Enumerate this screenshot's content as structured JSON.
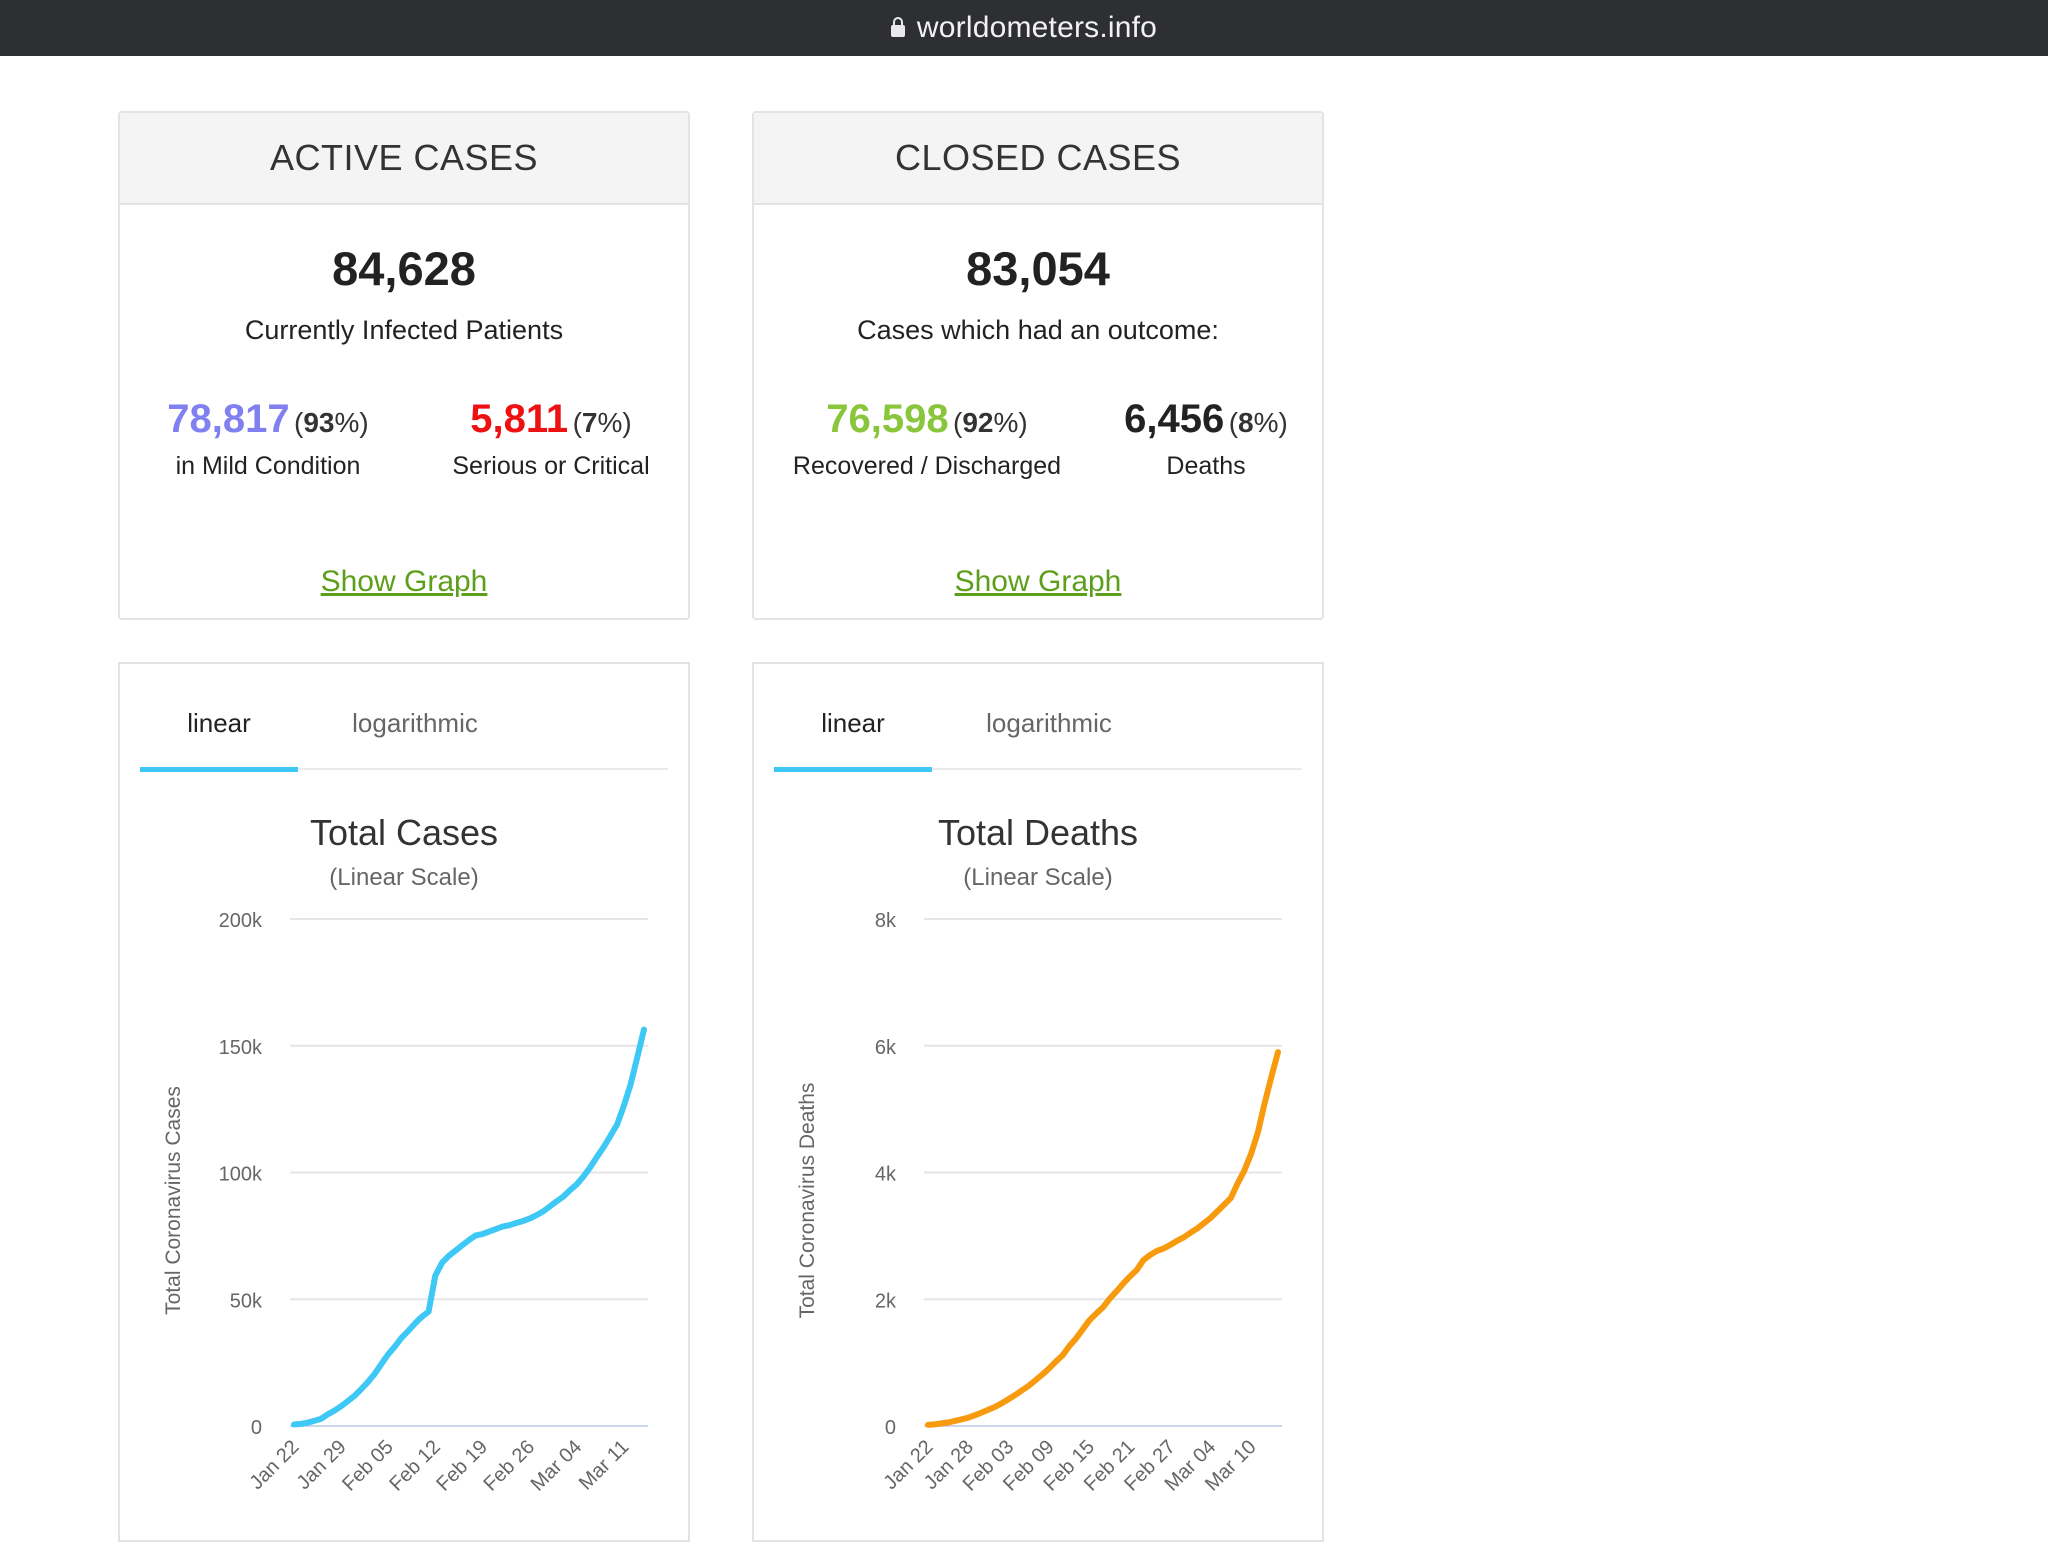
{
  "browser": {
    "url": "worldometers.info"
  },
  "active_cases": {
    "header": "ACTIVE CASES",
    "total": "84,628",
    "total_label": "Currently Infected Patients",
    "mild": {
      "value": "78,817",
      "pct": "93",
      "label": "in Mild Condition",
      "color": "#8080f0"
    },
    "serious": {
      "value": "5,811",
      "pct": "7",
      "label": "Serious or Critical",
      "color": "#ee1111"
    },
    "link": "Show Graph"
  },
  "closed_cases": {
    "header": "CLOSED CASES",
    "total": "83,054",
    "total_label": "Cases which had an outcome:",
    "recovered": {
      "value": "76,598",
      "pct": "92",
      "label": "Recovered / Discharged",
      "color": "#8ac63b"
    },
    "deaths": {
      "value": "6,456",
      "pct": "8",
      "label": "Deaths",
      "color": "#222222"
    },
    "link": "Show Graph"
  },
  "chart_data": [
    {
      "type": "line",
      "tabs": [
        "linear",
        "logarithmic"
      ],
      "active_tab": "linear",
      "title": "Total Cases",
      "subtitle": "(Linear Scale)",
      "ylabel": "Total Coronavirus Cases",
      "ylim": [
        0,
        200000
      ],
      "yticks": [
        0,
        50000,
        100000,
        150000,
        200000
      ],
      "ytick_labels": [
        "0",
        "50k",
        "100k",
        "150k",
        "200k"
      ],
      "xtick_labels": [
        "Jan 22",
        "Jan 29",
        "Feb 05",
        "Feb 12",
        "Feb 19",
        "Feb 26",
        "Mar 04",
        "Mar 11"
      ],
      "color": "#3ec8f5",
      "x": [
        "Jan 22",
        "Jan 23",
        "Jan 24",
        "Jan 25",
        "Jan 26",
        "Jan 27",
        "Jan 28",
        "Jan 29",
        "Jan 30",
        "Jan 31",
        "Feb 01",
        "Feb 02",
        "Feb 03",
        "Feb 04",
        "Feb 05",
        "Feb 06",
        "Feb 07",
        "Feb 08",
        "Feb 09",
        "Feb 10",
        "Feb 11",
        "Feb 12",
        "Feb 13",
        "Feb 14",
        "Feb 15",
        "Feb 16",
        "Feb 17",
        "Feb 18",
        "Feb 19",
        "Feb 20",
        "Feb 21",
        "Feb 22",
        "Feb 23",
        "Feb 24",
        "Feb 25",
        "Feb 26",
        "Feb 27",
        "Feb 28",
        "Feb 29",
        "Mar 01",
        "Mar 02",
        "Mar 03",
        "Mar 04",
        "Mar 05",
        "Mar 06",
        "Mar 07",
        "Mar 08",
        "Mar 09",
        "Mar 10",
        "Mar 11",
        "Mar 12",
        "Mar 13",
        "Mar 14"
      ],
      "values": [
        580,
        845,
        1317,
        2015,
        2800,
        4581,
        6058,
        7813,
        9823,
        11950,
        14553,
        17391,
        20630,
        24545,
        28266,
        31439,
        34876,
        37552,
        40553,
        43099,
        45134,
        59287,
        64438,
        67100,
        69197,
        71329,
        73332,
        75184,
        75700,
        76677,
        77673,
        78651,
        79205,
        80087,
        80828,
        81820,
        83112,
        84615,
        86604,
        88585,
        90443,
        93016,
        95314,
        98425,
        102050,
        106099,
        109991,
        114381,
        118948,
        126214,
        134576,
        145483,
        156400
      ]
    },
    {
      "type": "line",
      "tabs": [
        "linear",
        "logarithmic"
      ],
      "active_tab": "linear",
      "title": "Total Deaths",
      "subtitle": "(Linear Scale)",
      "ylabel": "Total Coronavirus Deaths",
      "ylim": [
        0,
        8000
      ],
      "yticks": [
        0,
        2000,
        4000,
        6000,
        8000
      ],
      "ytick_labels": [
        "0",
        "2k",
        "4k",
        "6k",
        "8k"
      ],
      "xtick_labels": [
        "Jan 22",
        "Jan 28",
        "Feb 03",
        "Feb 09",
        "Feb 15",
        "Feb 21",
        "Feb 27",
        "Mar 04",
        "Mar 10"
      ],
      "color": "#f89a0e",
      "x": [
        "Jan 22",
        "Jan 23",
        "Jan 24",
        "Jan 25",
        "Jan 26",
        "Jan 27",
        "Jan 28",
        "Jan 29",
        "Jan 30",
        "Jan 31",
        "Feb 01",
        "Feb 02",
        "Feb 03",
        "Feb 04",
        "Feb 05",
        "Feb 06",
        "Feb 07",
        "Feb 08",
        "Feb 09",
        "Feb 10",
        "Feb 11",
        "Feb 12",
        "Feb 13",
        "Feb 14",
        "Feb 15",
        "Feb 16",
        "Feb 17",
        "Feb 18",
        "Feb 19",
        "Feb 20",
        "Feb 21",
        "Feb 22",
        "Feb 23",
        "Feb 24",
        "Feb 25",
        "Feb 26",
        "Feb 27",
        "Feb 28",
        "Feb 29",
        "Mar 01",
        "Mar 02",
        "Mar 03",
        "Mar 04",
        "Mar 05",
        "Mar 06",
        "Mar 07",
        "Mar 08",
        "Mar 09",
        "Mar 10",
        "Mar 11",
        "Mar 12",
        "Mar 13",
        "Mar 14"
      ],
      "values": [
        17,
        25,
        41,
        56,
        80,
        106,
        132,
        170,
        213,
        259,
        304,
        362,
        426,
        492,
        565,
        638,
        724,
        813,
        910,
        1018,
        1115,
        1261,
        1383,
        1526,
        1669,
        1775,
        1873,
        2009,
        2126,
        2247,
        2360,
        2460,
        2618,
        2699,
        2763,
        2800,
        2858,
        2923,
        2977,
        3050,
        3117,
        3202,
        3285,
        3387,
        3494,
        3599,
        3827,
        4030,
        4296,
        4628,
        5084,
        5505,
        5900
      ]
    }
  ]
}
